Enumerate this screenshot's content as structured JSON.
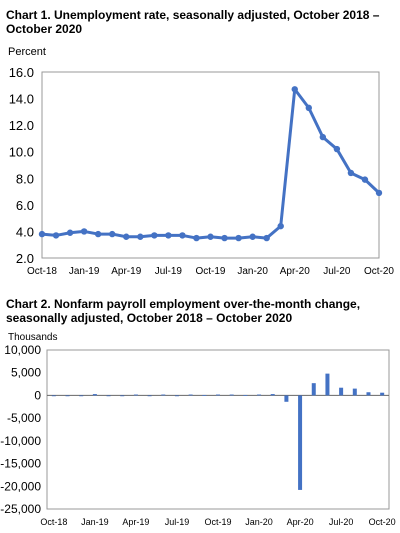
{
  "chart_data": [
    {
      "type": "line",
      "title": "Chart 1. Unemployment rate, seasonally adjusted, October 2018 – October 2020",
      "ylabel": "Percent",
      "xlabel": "",
      "ylim": [
        2.0,
        16.0
      ],
      "yticks": [
        "2.0",
        "4.0",
        "6.0",
        "8.0",
        "10.0",
        "12.0",
        "14.0",
        "16.0"
      ],
      "x_tick_labels": [
        "Oct-18",
        "Jan-19",
        "Apr-19",
        "Jul-19",
        "Oct-19",
        "Jan-20",
        "Apr-20",
        "Jul-20",
        "Oct-20"
      ],
      "x": [
        "Oct-18",
        "Nov-18",
        "Dec-18",
        "Jan-19",
        "Feb-19",
        "Mar-19",
        "Apr-19",
        "May-19",
        "Jun-19",
        "Jul-19",
        "Aug-19",
        "Sep-19",
        "Oct-19",
        "Nov-19",
        "Dec-19",
        "Jan-20",
        "Feb-20",
        "Mar-20",
        "Apr-20",
        "May-20",
        "Jun-20",
        "Jul-20",
        "Aug-20",
        "Sep-20",
        "Oct-20"
      ],
      "values": [
        3.8,
        3.7,
        3.9,
        4.0,
        3.8,
        3.8,
        3.6,
        3.6,
        3.7,
        3.7,
        3.7,
        3.5,
        3.6,
        3.5,
        3.5,
        3.6,
        3.5,
        4.4,
        14.7,
        13.3,
        11.1,
        10.2,
        8.4,
        7.9,
        6.9
      ],
      "grid": false,
      "line_color": "#4472C4"
    },
    {
      "type": "bar",
      "title": "Chart 2. Nonfarm payroll employment over-the-month change, seasonally adjusted, October 2018 – October 2020",
      "ylabel": "Thousands",
      "xlabel": "",
      "ylim": [
        -25000,
        10000
      ],
      "yticks": [
        "-25,000",
        "-20,000",
        "-15,000",
        "-10,000",
        "-5,000",
        "0",
        "5,000",
        "10,000"
      ],
      "x_tick_labels": [
        "Oct-18",
        "Jan-19",
        "Apr-19",
        "Jul-19",
        "Oct-19",
        "Jan-20",
        "Apr-20",
        "Jul-20",
        "Oct-20"
      ],
      "categories": [
        "Oct-18",
        "Nov-18",
        "Dec-18",
        "Jan-19",
        "Feb-19",
        "Mar-19",
        "Apr-19",
        "May-19",
        "Jun-19",
        "Jul-19",
        "Aug-19",
        "Sep-19",
        "Oct-19",
        "Nov-19",
        "Dec-19",
        "Jan-20",
        "Feb-20",
        "Mar-20",
        "Apr-20",
        "May-20",
        "Jun-20",
        "Jul-20",
        "Aug-20",
        "Sep-20",
        "Oct-20"
      ],
      "values": [
        0,
        0,
        0,
        300,
        0,
        0,
        200,
        0,
        200,
        0,
        200,
        100,
        200,
        200,
        100,
        200,
        300,
        -1400,
        -20800,
        2700,
        4800,
        1700,
        1500,
        700,
        600
      ],
      "grid": false,
      "bar_color": "#4472C4"
    }
  ]
}
